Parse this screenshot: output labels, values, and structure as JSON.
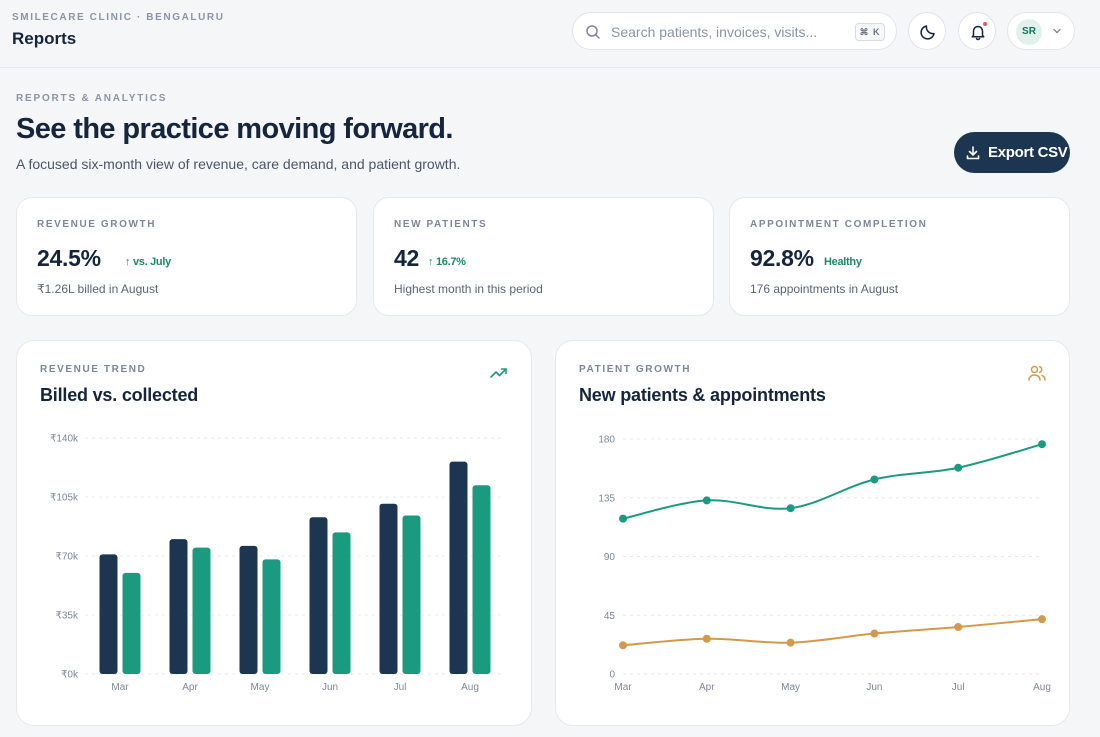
{
  "header": {
    "clinic": "SMILECARE CLINIC · BENGALURU",
    "title": "Reports",
    "search_placeholder": "Search patients, invoices, visits...",
    "shortcut": "⌘ K",
    "user_initials": "SR"
  },
  "hero": {
    "eyebrow": "REPORTS & ANALYTICS",
    "headline": "See the practice moving forward.",
    "subline": "A focused six-month view of revenue, care demand, and patient growth.",
    "export_label": "Export CSV"
  },
  "kpis": [
    {
      "label": "REVENUE GROWTH",
      "value": "24.5%",
      "delta": "↑ vs. July",
      "note": "₹1.26L billed in August"
    },
    {
      "label": "NEW PATIENTS",
      "value": "42",
      "delta": "↑ 16.7%",
      "note": "Highest month in this period"
    },
    {
      "label": "APPOINTMENT COMPLETION",
      "value": "92.8%",
      "delta": "Healthy",
      "note": "176 appointments in August"
    }
  ],
  "revenue_card": {
    "eyebrow": "REVENUE TREND",
    "title": "Billed vs. collected"
  },
  "growth_card": {
    "eyebrow": "PATIENT GROWTH",
    "title": "New patients & appointments"
  },
  "colors": {
    "navy": "#1c3550",
    "teal": "#1a9b80",
    "gold": "#d29a4a",
    "positive": "#1b8a67"
  },
  "chart_data": [
    {
      "type": "bar",
      "title": "Billed vs. collected",
      "categories": [
        "Mar",
        "Apr",
        "May",
        "Jun",
        "Jul",
        "Aug"
      ],
      "series": [
        {
          "color": "#1c3550",
          "values": [
            71000,
            80000,
            76000,
            93000,
            101000,
            126000
          ]
        },
        {
          "color": "#1a9b80",
          "values": [
            60000,
            75000,
            68000,
            84000,
            94000,
            112000
          ]
        }
      ],
      "yticks": [
        "₹0k",
        "₹35k",
        "₹70k",
        "₹105k",
        "₹140k"
      ],
      "ylim": [
        0,
        140000
      ],
      "grid": true
    },
    {
      "type": "line",
      "title": "New patients & appointments",
      "categories": [
        "Mar",
        "Apr",
        "May",
        "Jun",
        "Jul",
        "Aug"
      ],
      "series": [
        {
          "color": "#1a9b80",
          "values": [
            119,
            133,
            127,
            149,
            158,
            176
          ]
        },
        {
          "color": "#d29a4a",
          "values": [
            22,
            27,
            24,
            31,
            36,
            42
          ]
        }
      ],
      "yticks": [
        "0",
        "45",
        "90",
        "135",
        "180"
      ],
      "ylim": [
        0,
        180
      ],
      "grid": true
    }
  ]
}
